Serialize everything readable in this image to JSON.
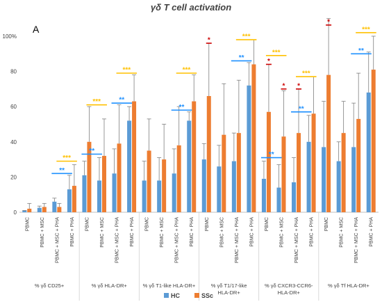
{
  "chart_data": {
    "type": "bar",
    "title": "γδ T cell activation",
    "panel_label": "A",
    "ylim": [
      0,
      100
    ],
    "yticks": [
      0,
      20,
      40,
      60,
      80,
      100
    ],
    "ytick_labels": [
      "0",
      "20",
      "40",
      "60",
      "80",
      "100%"
    ],
    "grid": false,
    "legend_position": "bottom-center",
    "series": [
      {
        "name": "HC",
        "color": "#5b9bd5"
      },
      {
        "name": "SSc",
        "color": "#ed7d31"
      }
    ],
    "groups": [
      {
        "label": "% γδ CD25+",
        "categories": [
          "PBMC",
          "PBMC + MSC",
          "PBMC + MSC + PHA",
          "PBMC + PHA"
        ],
        "hc": [
          1,
          2.5,
          6,
          13
        ],
        "hc_err": [
          1,
          3.5,
          8,
          21
        ],
        "ssc": [
          2,
          3,
          3,
          15
        ],
        "ssc_err": [
          5,
          5,
          5,
          27
        ],
        "sig": [
          {
            "from": 2,
            "to": 3,
            "series": "HC",
            "stars": "**",
            "y": 22,
            "color": "#1e90ff"
          },
          {
            "from": 2,
            "to": 3,
            "series": "SSc",
            "stars": "***",
            "y": 29,
            "color": "#ffc000"
          }
        ]
      },
      {
        "label": "% γδ HLA-DR+",
        "categories": [
          "PBMC",
          "PBMC + MSC",
          "PBMC + MSC + PHA",
          "PBMC + PHA"
        ],
        "hc": [
          21,
          18,
          22,
          52
        ],
        "hc_err": [
          29,
          31,
          36,
          60
        ],
        "ssc": [
          40,
          32,
          39,
          63
        ],
        "ssc_err": [
          60,
          53,
          61,
          78
        ],
        "sig": [
          {
            "from": 0,
            "to": 1,
            "series": "HC",
            "stars": "**",
            "y": 33,
            "color": "#1e90ff"
          },
          {
            "from": 0,
            "to": 1,
            "series": "SSc",
            "stars": "***",
            "y": 61,
            "color": "#ffc000"
          },
          {
            "from": 2,
            "to": 3,
            "series": "HC",
            "stars": "**",
            "y": 62,
            "color": "#1e90ff"
          },
          {
            "from": 2,
            "to": 3,
            "series": "SSc",
            "stars": "***",
            "y": 79,
            "color": "#ffc000"
          }
        ]
      },
      {
        "label": "% γδ T1-like HLA-DR+",
        "categories": [
          "PBMC",
          "PBMC + MSC",
          "PBMC + MSC + PHA",
          "PBMC + PHA"
        ],
        "hc": [
          18,
          18,
          22,
          52
        ],
        "hc_err": [
          29,
          31,
          36,
          57
        ],
        "ssc": [
          35,
          30,
          38,
          63
        ],
        "ssc_err": [
          53,
          50,
          60,
          78
        ],
        "sig": [
          {
            "from": 2,
            "to": 3,
            "series": "HC",
            "stars": "**",
            "y": 58,
            "color": "#1e90ff"
          },
          {
            "from": 2,
            "to": 3,
            "series": "SSc",
            "stars": "***",
            "y": 79,
            "color": "#ffc000"
          }
        ]
      },
      {
        "label": "% γδ T1/17-like HLA-DR+",
        "categories": [
          "PBMC",
          "PBMC + MSC",
          "PBMC + MSC + PHA",
          "PBMC + PHA"
        ],
        "hc": [
          30,
          26,
          29,
          72
        ],
        "hc_err": [
          39,
          38,
          45,
          85
        ],
        "ssc": [
          66,
          44,
          45,
          84
        ],
        "ssc_err": [
          96,
          73,
          75,
          98
        ],
        "sig": [
          {
            "from": 0,
            "to": 0,
            "series": "SSc",
            "stars": "*",
            "y": 96,
            "color": "#cc0000"
          },
          {
            "from": 2,
            "to": 3,
            "series": "HC",
            "stars": "**",
            "y": 86,
            "color": "#1e90ff"
          },
          {
            "from": 2,
            "to": 3,
            "series": "SSc",
            "stars": "***",
            "y": 98,
            "color": "#ffc000"
          }
        ]
      },
      {
        "label": "% γδ CXCR3-CCR6- HLA-DR+",
        "categories": [
          "PBMC",
          "PBMC + MSC",
          "PBMC + MSC + PHA",
          "PBMC + PHA"
        ],
        "hc": [
          19,
          14,
          17,
          40
        ],
        "hc_err": [
          29,
          27,
          31,
          55
        ],
        "ssc": [
          57,
          43,
          45,
          56
        ],
        "ssc_err": [
          84,
          69,
          70,
          77
        ],
        "sig": [
          {
            "from": 0,
            "to": 0,
            "series": "SSc",
            "stars": "*",
            "y": 84,
            "color": "#cc0000"
          },
          {
            "from": 0,
            "to": 1,
            "series": "HC",
            "stars": "**",
            "y": 31,
            "color": "#1e90ff"
          },
          {
            "from": 0,
            "to": 1,
            "series": "SSc",
            "stars": "***",
            "y": 89,
            "color": "#ffc000"
          },
          {
            "from": 1,
            "to": 1,
            "series": "SSc",
            "stars": "*",
            "y": 70,
            "color": "#cc0000"
          },
          {
            "from": 2,
            "to": 2,
            "series": "SSc",
            "stars": "*",
            "y": 70,
            "color": "#cc0000"
          },
          {
            "from": 2,
            "to": 3,
            "series": "HC",
            "stars": "**",
            "y": 57,
            "color": "#1e90ff"
          },
          {
            "from": 2,
            "to": 3,
            "series": "SSc",
            "stars": "***",
            "y": 77,
            "color": "#ffc000"
          }
        ]
      },
      {
        "label": "% γδ Tf HLA-DR+",
        "categories": [
          "PBMC",
          "PBMC + MSC",
          "PBMC + MSC + PHA",
          "PBMC + PHA"
        ],
        "hc": [
          37,
          29,
          37,
          68
        ],
        "hc_err": [
          63,
          40,
          62,
          91
        ],
        "ssc": [
          78,
          45,
          53,
          81
        ],
        "ssc_err": [
          110,
          63,
          79,
          100
        ],
        "sig": [
          {
            "from": 0,
            "to": 0,
            "series": "SSc",
            "stars": "*",
            "y": 110,
            "color": "#cc0000"
          },
          {
            "from": 2,
            "to": 3,
            "series": "HC",
            "stars": "**",
            "y": 90,
            "color": "#1e90ff"
          },
          {
            "from": 2,
            "to": 3,
            "series": "SSc",
            "stars": "***",
            "y": 102,
            "color": "#ffc000"
          }
        ]
      }
    ]
  }
}
